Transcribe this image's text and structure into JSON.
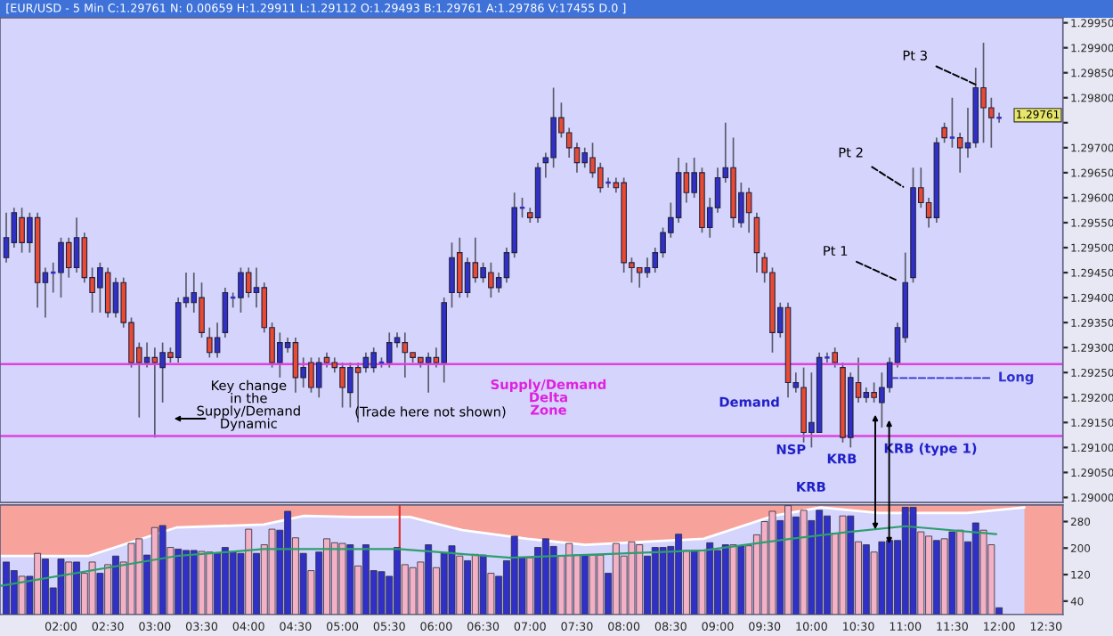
{
  "chart_data": [
    {
      "type": "candlestick",
      "title": "[EUR/USD - 5 Min C:1.29761 N: 0.00659 H:1.29911 L:1.29112 O:1.29493 B:1.29761 A:1.29786 V:17455 D.0 ]",
      "x": [
        1.4167,
        1.5,
        1.5833,
        1.6667,
        1.75,
        1.8333,
        1.9167,
        2,
        2.0833,
        2.1667,
        2.25,
        2.3333,
        2.4167,
        2.5,
        2.5833,
        2.6667,
        2.75,
        2.8333,
        2.9167,
        3,
        3.0833,
        3.1667,
        3.25,
        3.3333,
        3.4167,
        3.5,
        3.5833,
        3.6667,
        3.75,
        3.8333,
        3.9167,
        4,
        4.0833,
        4.1667,
        4.25,
        4.3333,
        4.4167,
        4.5,
        4.5833,
        4.6667,
        4.75,
        4.8333,
        4.9167,
        5,
        5.0833,
        5.1667,
        5.25,
        5.3333,
        5.4167,
        5.5,
        5.5833,
        5.6667,
        5.75,
        5.8333,
        5.9167,
        6,
        6.0833,
        6.1667,
        6.25,
        6.3333,
        6.4167,
        6.5,
        6.5833,
        6.6667,
        6.75,
        6.8333,
        6.9167,
        7,
        7.0833,
        7.1667,
        7.25,
        7.3333,
        7.4167,
        7.5,
        7.5833,
        7.6667,
        7.75,
        7.8333,
        7.9167,
        8,
        8.0833,
        8.1667,
        8.25,
        8.3333,
        8.4167,
        8.5,
        8.5833,
        8.6667,
        8.75,
        8.8333,
        8.9167,
        9,
        9.0833,
        9.1667,
        9.25,
        9.3333,
        9.4167,
        9.5,
        9.5833,
        9.6667,
        9.75,
        9.8333,
        9.9167,
        10,
        10.0833,
        10.1667,
        10.25,
        10.3333,
        10.4167,
        10.5,
        10.5833,
        10.6667,
        10.75,
        10.8333,
        10.9167,
        11,
        11.0833,
        11.1667,
        11.25,
        11.3333,
        11.4167,
        11.5,
        11.5833,
        11.6667,
        11.75,
        11.8333,
        11.9167,
        12
      ],
      "ohlc": [
        [
          1.2948,
          1.2957,
          1.2947,
          1.2952
        ],
        [
          1.2951,
          1.2958,
          1.295,
          1.2957
        ],
        [
          1.2956,
          1.2958,
          1.2949,
          1.2951
        ],
        [
          1.2951,
          1.2957,
          1.2949,
          1.2956
        ],
        [
          1.2956,
          1.2957,
          1.2938,
          1.2943
        ],
        [
          1.2943,
          1.2946,
          1.2936,
          1.2945
        ],
        [
          1.2945,
          1.2947,
          1.2941,
          1.2945
        ],
        [
          1.2945,
          1.2952,
          1.294,
          1.2951
        ],
        [
          1.2951,
          1.2952,
          1.2944,
          1.2946
        ],
        [
          1.2946,
          1.2956,
          1.2945,
          1.2952
        ],
        [
          1.2952,
          1.2953,
          1.2943,
          1.2944
        ],
        [
          1.2944,
          1.2946,
          1.2937,
          1.2941
        ],
        [
          1.2942,
          1.2947,
          1.2937,
          1.2946
        ],
        [
          1.2945,
          1.2946,
          1.2936,
          1.2937
        ],
        [
          1.2937,
          1.2944,
          1.2936,
          1.2943
        ],
        [
          1.2943,
          1.2944,
          1.2934,
          1.2935
        ],
        [
          1.2935,
          1.2936,
          1.2926,
          1.2927
        ],
        [
          1.293,
          1.2931,
          1.2916,
          1.2927
        ],
        [
          1.2927,
          1.2931,
          1.2926,
          1.2928
        ],
        [
          1.2928,
          1.293,
          1.2912,
          1.2927
        ],
        [
          1.2926,
          1.2931,
          1.2919,
          1.2929
        ],
        [
          1.2929,
          1.293,
          1.2927,
          1.2928
        ],
        [
          1.2928,
          1.294,
          1.2927,
          1.2939
        ],
        [
          1.2939,
          1.2945,
          1.2938,
          1.294
        ],
        [
          1.2939,
          1.2945,
          1.2937,
          1.2941
        ],
        [
          1.294,
          1.2943,
          1.2932,
          1.2933
        ],
        [
          1.2932,
          1.2934,
          1.2928,
          1.2929
        ],
        [
          1.2929,
          1.2935,
          1.2928,
          1.2932
        ],
        [
          1.2933,
          1.2942,
          1.2932,
          1.2941
        ],
        [
          1.294,
          1.2941,
          1.2938,
          1.294
        ],
        [
          1.294,
          1.2946,
          1.2937,
          1.2945
        ],
        [
          1.2945,
          1.2946,
          1.294,
          1.2941
        ],
        [
          1.2941,
          1.2946,
          1.2938,
          1.2942
        ],
        [
          1.2942,
          1.2943,
          1.2933,
          1.2934
        ],
        [
          1.2934,
          1.2935,
          1.2926,
          1.2927
        ],
        [
          1.2927,
          1.2933,
          1.2924,
          1.2931
        ],
        [
          1.293,
          1.2932,
          1.2929,
          1.2931
        ],
        [
          1.2931,
          1.2932,
          1.2921,
          1.2924
        ],
        [
          1.2924,
          1.2928,
          1.2922,
          1.2926
        ],
        [
          1.2927,
          1.2928,
          1.2921,
          1.2922
        ],
        [
          1.2922,
          1.2928,
          1.292,
          1.2927
        ],
        [
          1.2928,
          1.2929,
          1.2926,
          1.2927
        ],
        [
          1.2927,
          1.2928,
          1.2925,
          1.2926
        ],
        [
          1.2926,
          1.2927,
          1.2918,
          1.2922
        ],
        [
          1.2921,
          1.2927,
          1.2918,
          1.2926
        ],
        [
          1.2926,
          1.2927,
          1.2915,
          1.2925
        ],
        [
          1.2926,
          1.2929,
          1.2925,
          1.2928
        ],
        [
          1.2926,
          1.293,
          1.2925,
          1.2929
        ],
        [
          1.2927,
          1.2928,
          1.2926,
          1.2927
        ],
        [
          1.2927,
          1.2933,
          1.2926,
          1.2931
        ],
        [
          1.2931,
          1.2933,
          1.293,
          1.2932
        ],
        [
          1.2931,
          1.2933,
          1.2924,
          1.2929
        ],
        [
          1.2929,
          1.2929,
          1.2927,
          1.2928
        ],
        [
          1.2928,
          1.2928,
          1.2926,
          1.2927
        ],
        [
          1.2927,
          1.2929,
          1.2921,
          1.2928
        ],
        [
          1.2928,
          1.293,
          1.2926,
          1.2927
        ],
        [
          1.2927,
          1.294,
          1.2923,
          1.2939
        ],
        [
          1.2941,
          1.2951,
          1.2938,
          1.2948
        ],
        [
          1.2949,
          1.2952,
          1.294,
          1.2941
        ],
        [
          1.2941,
          1.2948,
          1.294,
          1.2947
        ],
        [
          1.2947,
          1.2952,
          1.2943,
          1.2944
        ],
        [
          1.2944,
          1.2947,
          1.2943,
          1.2946
        ],
        [
          1.2945,
          1.2947,
          1.294,
          1.2942
        ],
        [
          1.2942,
          1.2945,
          1.2941,
          1.2944
        ],
        [
          1.2944,
          1.295,
          1.2943,
          1.2949
        ],
        [
          1.2949,
          1.2961,
          1.2948,
          1.2958
        ],
        [
          1.2958,
          1.296,
          1.2956,
          1.2958
        ],
        [
          1.2957,
          1.2958,
          1.2955,
          1.2956
        ],
        [
          1.2956,
          1.2967,
          1.2955,
          1.2966
        ],
        [
          1.2967,
          1.2969,
          1.2964,
          1.2968
        ],
        [
          1.2968,
          1.2982,
          1.2966,
          1.2976
        ],
        [
          1.2976,
          1.2979,
          1.2972,
          1.2973
        ],
        [
          1.2973,
          1.2974,
          1.2968,
          1.297
        ],
        [
          1.297,
          1.2971,
          1.2965,
          1.2967
        ],
        [
          1.2967,
          1.297,
          1.2966,
          1.2969
        ],
        [
          1.2968,
          1.2971,
          1.2964,
          1.2965
        ],
        [
          1.2966,
          1.2967,
          1.2961,
          1.2962
        ],
        [
          1.2963,
          1.2964,
          1.2962,
          1.2963
        ],
        [
          1.2963,
          1.2964,
          1.2961,
          1.2962
        ],
        [
          1.2963,
          1.2964,
          1.2945,
          1.2947
        ],
        [
          1.2947,
          1.2948,
          1.2943,
          1.2946
        ],
        [
          1.2946,
          1.2946,
          1.2942,
          1.2945
        ],
        [
          1.2945,
          1.2948,
          1.2944,
          1.2946
        ],
        [
          1.2946,
          1.295,
          1.2945,
          1.2949
        ],
        [
          1.2949,
          1.2954,
          1.2948,
          1.2953
        ],
        [
          1.2953,
          1.2959,
          1.2952,
          1.2956
        ],
        [
          1.2956,
          1.2968,
          1.2955,
          1.2965
        ],
        [
          1.2965,
          1.2967,
          1.2959,
          1.2961
        ],
        [
          1.2961,
          1.2968,
          1.296,
          1.2965
        ],
        [
          1.2965,
          1.2966,
          1.2953,
          1.2954
        ],
        [
          1.2954,
          1.296,
          1.2952,
          1.2958
        ],
        [
          1.2958,
          1.2966,
          1.2957,
          1.2964
        ],
        [
          1.2964,
          1.2975,
          1.2963,
          1.2966
        ],
        [
          1.2966,
          1.2972,
          1.2954,
          1.2956
        ],
        [
          1.2955,
          1.2963,
          1.2954,
          1.2961
        ],
        [
          1.2961,
          1.2962,
          1.2953,
          1.2957
        ],
        [
          1.2956,
          1.2957,
          1.2945,
          1.2949
        ],
        [
          1.2948,
          1.2949,
          1.2943,
          1.2945
        ],
        [
          1.2945,
          1.2946,
          1.2929,
          1.2933
        ],
        [
          1.2933,
          1.2939,
          1.2932,
          1.2938
        ],
        [
          1.2938,
          1.2939,
          1.292,
          1.2923
        ],
        [
          1.2922,
          1.2925,
          1.2921,
          1.2923
        ],
        [
          1.2922,
          1.2926,
          1.2911,
          1.2913
        ],
        [
          1.2913,
          1.2925,
          1.291,
          1.2915
        ],
        [
          1.2913,
          1.2929,
          1.2913,
          1.2928
        ],
        [
          1.2928,
          1.2929,
          1.2927,
          1.2928
        ],
        [
          1.2929,
          1.293,
          1.2926,
          1.2927
        ],
        [
          1.2926,
          1.2927,
          1.2911,
          1.2912
        ],
        [
          1.2912,
          1.2925,
          1.291,
          1.2924
        ],
        [
          1.2923,
          1.2928,
          1.2919,
          1.292
        ],
        [
          1.292,
          1.2922,
          1.2919,
          1.2921
        ],
        [
          1.2921,
          1.2923,
          1.2919,
          1.292
        ],
        [
          1.2919,
          1.2925,
          1.2914,
          1.2922
        ],
        [
          1.2922,
          1.2928,
          1.2921,
          1.2927
        ],
        [
          1.2927,
          1.2935,
          1.2926,
          1.2934
        ],
        [
          1.2932,
          1.2949,
          1.2931,
          1.2943
        ],
        [
          1.2944,
          1.2966,
          1.2943,
          1.2962
        ],
        [
          1.2962,
          1.2966,
          1.2958,
          1.2959
        ],
        [
          1.2959,
          1.296,
          1.2954,
          1.2956
        ],
        [
          1.2956,
          1.2972,
          1.2955,
          1.2971
        ],
        [
          1.2974,
          1.2975,
          1.2971,
          1.2972
        ],
        [
          1.2972,
          1.298,
          1.297,
          1.2972
        ],
        [
          1.2972,
          1.2973,
          1.2965,
          1.297
        ],
        [
          1.297,
          1.2978,
          1.2968,
          1.2971
        ],
        [
          1.2971,
          1.2986,
          1.297,
          1.2982
        ],
        [
          1.2982,
          1.2991,
          1.2971,
          1.2978
        ],
        [
          1.2978,
          1.298,
          1.297,
          1.2976
        ],
        [
          1.2976,
          1.2977,
          1.2975,
          1.2976
        ]
      ],
      "colors": [
        "#3030c8",
        "#3030c8",
        "#e84a32",
        "#3030c8",
        "#e84a32",
        "#3030c8",
        "#3030c8",
        "#3030c8",
        "#e84a32",
        "#3030c8",
        "#e84a32",
        "#e84a32",
        "#3030c8",
        "#e84a32",
        "#3030c8",
        "#e84a32",
        "#e84a32",
        "#e84a32",
        "#3030c8",
        "#e84a32",
        "#3030c8",
        "#e84a32",
        "#3030c8",
        "#3030c8",
        "#3030c8",
        "#e84a32",
        "#e84a32",
        "#3030c8",
        "#3030c8",
        "#3030c8",
        "#3030c8",
        "#e84a32",
        "#3030c8",
        "#e84a32",
        "#e84a32",
        "#3030c8",
        "#3030c8",
        "#e84a32",
        "#3030c8",
        "#e84a32",
        "#3030c8",
        "#e84a32",
        "#e84a32",
        "#e84a32",
        "#3030c8",
        "#e84a32",
        "#3030c8",
        "#3030c8",
        "#3030c8",
        "#3030c8",
        "#3030c8",
        "#e84a32",
        "#e84a32",
        "#e84a32",
        "#3030c8",
        "#e84a32",
        "#3030c8",
        "#3030c8",
        "#e84a32",
        "#3030c8",
        "#e84a32",
        "#3030c8",
        "#e84a32",
        "#3030c8",
        "#3030c8",
        "#3030c8",
        "#3030c8",
        "#e84a32",
        "#3030c8",
        "#3030c8",
        "#3030c8",
        "#e84a32",
        "#e84a32",
        "#e84a32",
        "#3030c8",
        "#e84a32",
        "#e84a32",
        "#3030c8",
        "#e84a32",
        "#e84a32",
        "#e84a32",
        "#e84a32",
        "#3030c8",
        "#3030c8",
        "#3030c8",
        "#3030c8",
        "#3030c8",
        "#e84a32",
        "#3030c8",
        "#e84a32",
        "#3030c8",
        "#3030c8",
        "#3030c8",
        "#e84a32",
        "#3030c8",
        "#e84a32",
        "#e84a32",
        "#e84a32",
        "#e84a32",
        "#3030c8",
        "#e84a32",
        "#3030c8",
        "#e84a32",
        "#3030c8",
        "#3030c8",
        "#3030c8",
        "#e84a32",
        "#e84a32",
        "#3030c8",
        "#e84a32",
        "#3030c8",
        "#e84a32",
        "#3030c8",
        "#3030c8",
        "#3030c8",
        "#3030c8",
        "#3030c8",
        "#e84a32",
        "#e84a32",
        "#3030c8",
        "#e84a32",
        "#3030c8",
        "#e84a32",
        "#3030c8",
        "#3030c8",
        "#e84a32",
        "#e84a32",
        "#3030c8"
      ],
      "xlim": [
        1.35,
        12.68
      ],
      "ylim": [
        1.2899,
        1.2996
      ],
      "yticks": [
        {
          "value": 1.29,
          "label": "1.29000"
        },
        {
          "value": 1.2905,
          "label": "1.29050"
        },
        {
          "value": 1.291,
          "label": "1.29100"
        },
        {
          "value": 1.2915,
          "label": "1.29150"
        },
        {
          "value": 1.292,
          "label": "1.29200"
        },
        {
          "value": 1.2925,
          "label": "1.29250"
        },
        {
          "value": 1.293,
          "label": "1.29300"
        },
        {
          "value": 1.2935,
          "label": "1.29350"
        },
        {
          "value": 1.294,
          "label": "1.29400"
        },
        {
          "value": 1.2945,
          "label": "1.29450"
        },
        {
          "value": 1.295,
          "label": "1.29500"
        },
        {
          "value": 1.2955,
          "label": "1.29550"
        },
        {
          "value": 1.296,
          "label": "1.29600"
        },
        {
          "value": 1.2965,
          "label": "1.29650"
        },
        {
          "value": 1.297,
          "label": "1.29700"
        },
        {
          "value": 1.2975,
          "label": null
        },
        {
          "value": 1.298,
          "label": "1.29800"
        },
        {
          "value": 1.2985,
          "label": "1.29850"
        },
        {
          "value": 1.299,
          "label": "1.29900"
        },
        {
          "value": 1.2995,
          "label": "1.29950"
        }
      ],
      "tick_labels": "y",
      "ref_lines": [
        {
          "axis": "y",
          "value": 1.29267,
          "color": "#e040e0"
        },
        {
          "axis": "y",
          "value": 1.29123,
          "color": "#e040e0"
        }
      ],
      "annotations": [
        {
          "text": "Pt 3",
          "x": 11.79,
          "y": 1.29823
        },
        {
          "text": "Pt 2",
          "x": 11.0,
          "y": 1.29619
        },
        {
          "text": "Pt 1",
          "x": 10.94,
          "y": 1.29432
        },
        {
          "text": "Long",
          "x": 10.81,
          "y": 1.29239
        },
        "Demand",
        {
          "text": "NSP",
          "x": 9.86,
          "y": 1.29109
        },
        "KRB",
        "KRB",
        {
          "text": "KRB (type 1)",
          "x": 11.11,
          "y": 1.29126
        },
        "Supply/Demand\nDelta\nZone",
        "Key change\nin the\nSupply/Demand\nDynamic",
        "(Trade here not shown)",
        "1.29761"
      ]
    },
    {
      "type": "bar",
      "x": [
        1.4167,
        1.5,
        1.5833,
        1.6667,
        1.75,
        1.8333,
        1.9167,
        2,
        2.0833,
        2.1667,
        2.25,
        2.3333,
        2.4167,
        2.5,
        2.5833,
        2.6667,
        2.75,
        2.8333,
        2.9167,
        3,
        3.0833,
        3.1667,
        3.25,
        3.3333,
        3.4167,
        3.5,
        3.5833,
        3.6667,
        3.75,
        3.8333,
        3.9167,
        4,
        4.0833,
        4.1667,
        4.25,
        4.3333,
        4.4167,
        4.5,
        4.5833,
        4.6667,
        4.75,
        4.8333,
        4.9167,
        5,
        5.0833,
        5.1667,
        5.25,
        5.3333,
        5.4167,
        5.5,
        5.5833,
        5.6667,
        5.75,
        5.8333,
        5.9167,
        6,
        6.0833,
        6.1667,
        6.25,
        6.3333,
        6.4167,
        6.5,
        6.5833,
        6.6667,
        6.75,
        6.8333,
        6.9167,
        7,
        7.0833,
        7.1667,
        7.25,
        7.3333,
        7.4167,
        7.5,
        7.5833,
        7.6667,
        7.75,
        7.8333,
        7.9167,
        8,
        8.0833,
        8.1667,
        8.25,
        8.3333,
        8.4167,
        8.5,
        8.5833,
        8.6667,
        8.75,
        8.8333,
        8.9167,
        9,
        9.0833,
        9.1667,
        9.25,
        9.3333,
        9.4167,
        9.5,
        9.5833,
        9.6667,
        9.75,
        9.8333,
        9.9167,
        10,
        10.0833,
        10.1667,
        10.25,
        10.3333,
        10.4167,
        10.5,
        10.5833,
        10.6667,
        10.75,
        10.8333,
        10.9167,
        11,
        11.0833,
        11.1667,
        11.25,
        11.3333,
        11.4167,
        11.5,
        11.5833,
        11.6667,
        11.75,
        11.8333,
        11.9167,
        12
      ],
      "series": [
        {
          "type": "area",
          "color": "#d4d4fc",
          "x": [
            1.35,
            2.29,
            3.23,
            4.16,
            4.59,
            5.1,
            5.72,
            6.28,
            6.97,
            7.59,
            8.85,
            9.59,
            10.1,
            10.72,
            11.66,
            12.27
          ],
          "values": [
            176,
            176,
            262,
            271,
            297,
            294,
            294,
            254,
            228,
            210,
            228,
            297,
            323,
            306,
            306,
            323
          ]
        },
        {
          "type": "bar",
          "values": [
            158,
            132,
            115,
            115,
            184,
            167,
            80,
            167,
            158,
            158,
            124,
            158,
            124,
            150,
            176,
            158,
            214,
            228,
            179,
            262,
            268,
            202,
            197,
            193,
            193,
            190,
            188,
            184,
            202,
            188,
            184,
            257,
            184,
            210,
            257,
            254,
            311,
            231,
            184,
            132,
            188,
            228,
            216,
            214,
            210,
            146,
            210,
            132,
            129,
            115,
            202,
            150,
            141,
            158,
            210,
            141,
            184,
            207,
            176,
            162,
            181,
            179,
            124,
            115,
            162,
            236,
            171,
            171,
            202,
            228,
            205,
            176,
            214,
            179,
            179,
            179,
            179,
            124,
            214,
            176,
            219,
            210,
            176,
            202,
            202,
            205,
            242,
            193,
            193,
            193,
            216,
            193,
            210,
            210,
            207,
            207,
            240,
            280,
            311,
            283,
            328,
            294,
            314,
            283,
            314,
            297,
            245,
            297,
            297,
            219,
            210,
            188,
            219,
            223,
            223,
            323,
            323,
            249,
            236,
            223,
            228,
            249,
            254,
            219,
            276,
            254,
            210,
            20
          ],
          "colors": [
            "#3030c8",
            "#3030c8",
            "#f4b0c4",
            "#3030c8",
            "#f4b0c4",
            "#3030c8",
            "#3030c8",
            "#3030c8",
            "#f4b0c4",
            "#3030c8",
            "#f4b0c4",
            "#f4b0c4",
            "#3030c8",
            "#f4b0c4",
            "#3030c8",
            "#f4b0c4",
            "#f4b0c4",
            "#f4b0c4",
            "#3030c8",
            "#f4b0c4",
            "#3030c8",
            "#f4b0c4",
            "#3030c8",
            "#3030c8",
            "#3030c8",
            "#f4b0c4",
            "#f4b0c4",
            "#3030c8",
            "#3030c8",
            "#3030c8",
            "#3030c8",
            "#f4b0c4",
            "#3030c8",
            "#f4b0c4",
            "#f4b0c4",
            "#3030c8",
            "#3030c8",
            "#f4b0c4",
            "#3030c8",
            "#f4b0c4",
            "#3030c8",
            "#f4b0c4",
            "#f4b0c4",
            "#f4b0c4",
            "#3030c8",
            "#f4b0c4",
            "#3030c8",
            "#3030c8",
            "#3030c8",
            "#3030c8",
            "#3030c8",
            "#f4b0c4",
            "#f4b0c4",
            "#f4b0c4",
            "#3030c8",
            "#f4b0c4",
            "#3030c8",
            "#3030c8",
            "#f4b0c4",
            "#3030c8",
            "#f4b0c4",
            "#3030c8",
            "#f4b0c4",
            "#3030c8",
            "#3030c8",
            "#3030c8",
            "#3030c8",
            "#f4b0c4",
            "#3030c8",
            "#3030c8",
            "#3030c8",
            "#f4b0c4",
            "#f4b0c4",
            "#f4b0c4",
            "#3030c8",
            "#f4b0c4",
            "#f4b0c4",
            "#3030c8",
            "#f4b0c4",
            "#f4b0c4",
            "#f4b0c4",
            "#f4b0c4",
            "#3030c8",
            "#3030c8",
            "#3030c8",
            "#3030c8",
            "#3030c8",
            "#f4b0c4",
            "#3030c8",
            "#f4b0c4",
            "#3030c8",
            "#3030c8",
            "#3030c8",
            "#f4b0c4",
            "#3030c8",
            "#f4b0c4",
            "#f4b0c4",
            "#f4b0c4",
            "#f4b0c4",
            "#3030c8",
            "#f4b0c4",
            "#3030c8",
            "#f4b0c4",
            "#3030c8",
            "#3030c8",
            "#3030c8",
            "#f4b0c4",
            "#f4b0c4",
            "#3030c8",
            "#f4b0c4",
            "#3030c8",
            "#f4b0c4",
            "#3030c8",
            "#3030c8",
            "#3030c8",
            "#3030c8",
            "#3030c8",
            "#f4b0c4",
            "#f4b0c4",
            "#3030c8",
            "#f4b0c4",
            "#3030c8",
            "#f4b0c4",
            "#3030c8",
            "#3030c8",
            "#f4b0c4",
            "#f4b0c4",
            "#3030c8"
          ]
        },
        {
          "type": "line",
          "color": "#2e9e6e",
          "x": [
            1.36,
            3.23,
            4.16,
            5.6,
            6.79,
            8.85,
            9.78,
            10.4,
            11.0,
            11.97
          ],
          "values": [
            86,
            176,
            197,
            197,
            171,
            193,
            228,
            249,
            266,
            242
          ]
        }
      ],
      "xlim": [
        1.35,
        12.68
      ],
      "ylim": [
        0,
        330
      ],
      "xticks": [
        {
          "value": 2,
          "label": "02:00"
        },
        {
          "value": 2.5,
          "label": "02:30"
        },
        {
          "value": 3,
          "label": "03:00"
        },
        {
          "value": 3.5,
          "label": "03:30"
        },
        {
          "value": 4,
          "label": "04:00"
        },
        {
          "value": 4.5,
          "label": "04:30"
        },
        {
          "value": 5,
          "label": "05:00"
        },
        {
          "value": 5.5,
          "label": "05:30"
        },
        {
          "value": 6,
          "label": "06:00"
        },
        {
          "value": 6.5,
          "label": "06:30"
        },
        {
          "value": 7,
          "label": "07:00"
        },
        {
          "value": 7.5,
          "label": "07:30"
        },
        {
          "value": 8,
          "label": "08:00"
        },
        {
          "value": 8.5,
          "label": "08:30"
        },
        {
          "value": 9,
          "label": "09:00"
        },
        {
          "value": 9.5,
          "label": "09:30"
        },
        {
          "value": 10,
          "label": "10:00"
        },
        {
          "value": 10.5,
          "label": "10:30"
        },
        {
          "value": 11,
          "label": "11:00"
        },
        {
          "value": 11.5,
          "label": "11:30"
        },
        {
          "value": 12,
          "label": "12:00"
        },
        {
          "value": 12.5,
          "label": "12:30"
        }
      ],
      "yticks": [
        40,
        120,
        200,
        280
      ],
      "ref_lines": [
        {
          "axis": "x",
          "value": 5.61,
          "color": "#e03030"
        }
      ]
    }
  ]
}
